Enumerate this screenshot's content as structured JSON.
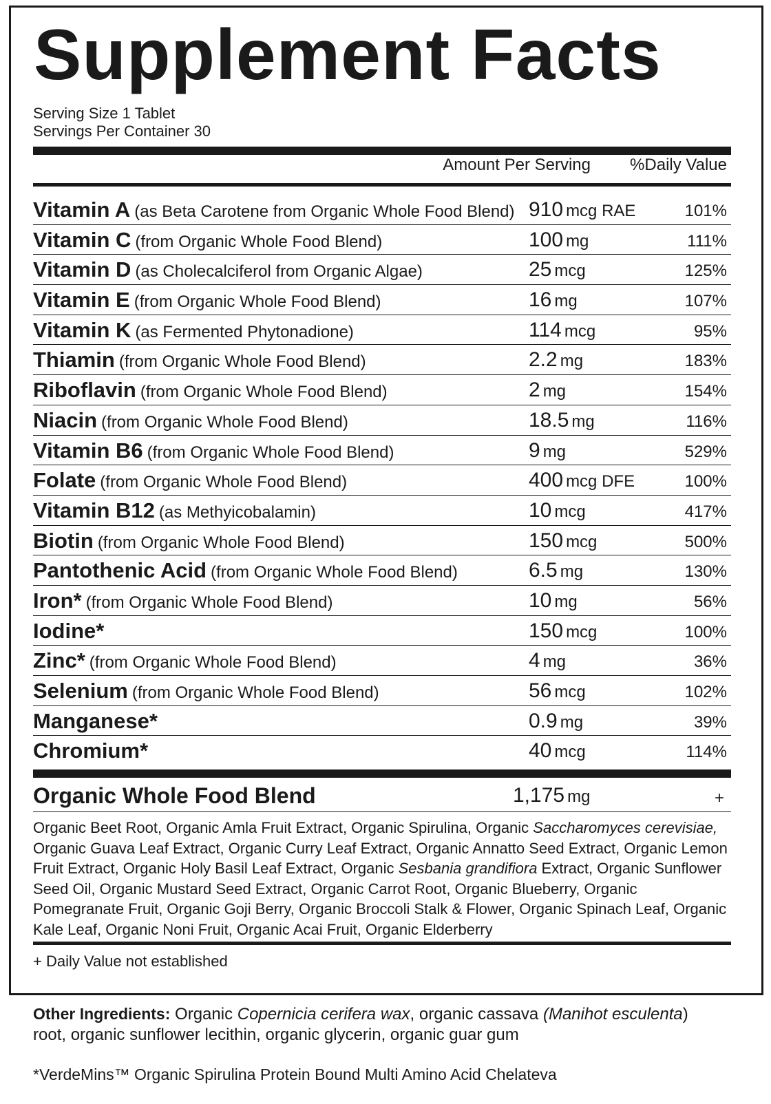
{
  "title": "Supplement Facts",
  "serving_size": "Serving Size 1 Tablet",
  "servings_per_container": "Servings Per Container 30",
  "header": {
    "amount": "Amount Per Serving",
    "dv": "%Daily Value"
  },
  "nutrients": [
    {
      "name": "Vitamin A",
      "source": "(as Beta Carotene from Organic Whole Food Blend)",
      "amount": "910",
      "unit": "mcg RAE",
      "dv": "101%"
    },
    {
      "name": "Vitamin C",
      "source": "(from Organic Whole Food Blend)",
      "amount": "100",
      "unit": "mg",
      "dv": "111%"
    },
    {
      "name": "Vitamin D",
      "source": "(as Cholecalciferol from Organic Algae)",
      "amount": "25",
      "unit": "mcg",
      "dv": "125%"
    },
    {
      "name": "Vitamin E",
      "source": "(from Organic Whole Food Blend)",
      "amount": "16",
      "unit": "mg",
      "dv": "107%"
    },
    {
      "name": "Vitamin K",
      "source": "(as Fermented Phytonadione)",
      "amount": "114",
      "unit": "mcg",
      "dv": "95%"
    },
    {
      "name": "Thiamin",
      "source": "(from Organic Whole Food Blend)",
      "amount": "2.2",
      "unit": "mg",
      "dv": "183%"
    },
    {
      "name": "Riboflavin",
      "source": "(from Organic Whole Food Blend)",
      "amount": "2",
      "unit": "mg",
      "dv": "154%"
    },
    {
      "name": "Niacin",
      "source": "(from Organic Whole Food Blend)",
      "amount": "18.5",
      "unit": "mg",
      "dv": "116%"
    },
    {
      "name": "Vitamin B6",
      "source": "(from Organic Whole Food Blend)",
      "amount": "9",
      "unit": "mg",
      "dv": "529%"
    },
    {
      "name": "Folate",
      "source": "(from Organic Whole Food Blend)",
      "amount": "400",
      "unit": "mcg DFE",
      "dv": "100%"
    },
    {
      "name": "Vitamin B12",
      "source": "(as Methyicobalamin)",
      "amount": "10",
      "unit": "mcg",
      "dv": "417%"
    },
    {
      "name": "Biotin",
      "source": "(from Organic Whole Food Blend)",
      "amount": "150",
      "unit": "mcg",
      "dv": "500%"
    },
    {
      "name": "Pantothenic Acid",
      "source": "(from Organic Whole Food Blend)",
      "amount": "6.5",
      "unit": "mg",
      "dv": "130%"
    },
    {
      "name": "Iron*",
      "source": "(from Organic Whole Food Blend)",
      "amount": "10",
      "unit": "mg",
      "dv": "56%"
    },
    {
      "name": "Iodine*",
      "source": "",
      "amount": "150",
      "unit": "mcg",
      "dv": "100%"
    },
    {
      "name": "Zinc*",
      "source": "(from Organic Whole Food Blend)",
      "amount": "4",
      "unit": "mg",
      "dv": "36%"
    },
    {
      "name": "Selenium",
      "source": "(from Organic Whole Food Blend)",
      "amount": "56",
      "unit": "mcg",
      "dv": "102%"
    },
    {
      "name": "Manganese*",
      "source": "",
      "amount": "0.9",
      "unit": "mg",
      "dv": "39%"
    },
    {
      "name": "Chromium*",
      "source": "",
      "amount": "40",
      "unit": "mcg",
      "dv": "114%"
    }
  ],
  "blend": {
    "name": "Organic Whole Food Blend",
    "amount": "1,175",
    "unit": "mg",
    "dv": "+",
    "ingredients": {
      "p1": "Organic Beet Root, Organic Amla Fruit Extract, Organic Spirulina, Organic ",
      "i1": "Saccharomyces cerevisiae,",
      "p2": " Organic Guava Leaf Extract, Organic Curry Leaf Extract, Organic Annatto Seed Extract, Organic Lemon Fruit Extract, Organic Holy Basil Leaf Extract, Organic ",
      "i2": "Sesbania grandifiora",
      "p3": " Extract, Organic Sunflower Seed Oil, Organic Mustard Seed Extract, Organic Carrot Root, Organic Blueberry, Organic Pomegranate Fruit, Organic Goji Berry, Organic Broccoli Stalk & Flower, Organic Spinach Leaf, Organic Kale Leaf, Organic Noni Fruit, Organic Acai Fruit, Organic Elderberry"
    }
  },
  "footnote": "+ Daily Value not established",
  "other_ingredients": {
    "label": "Other Ingredients:",
    "p1": " Organic ",
    "i1": "Copernicia cerifera wax",
    "p2": ", organic cassava ",
    "i2": "(Manihot esculenta",
    "p3": ") root, organic sunflower lecithin, organic glycerin, organic guar gum"
  },
  "verdemins": "*VerdeMins™ Organic Spirulina Protein Bound Multi Amino Acid Chelateva"
}
